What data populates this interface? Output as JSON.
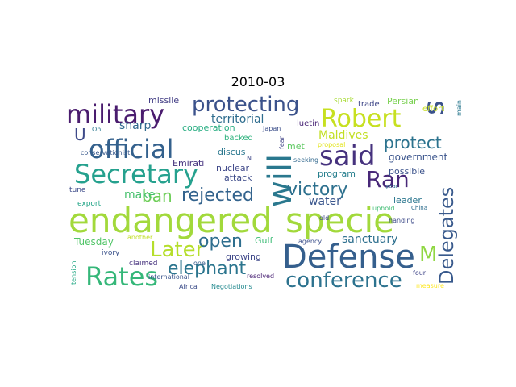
{
  "figure": {
    "title": "2010-03"
  },
  "words": [
    {
      "text": "endangered",
      "color": "#a2d93b"
    },
    {
      "text": "specie",
      "color": "#a2d93b"
    },
    {
      "text": "Defense",
      "color": "#355f8d"
    },
    {
      "text": "Secretary",
      "color": "#25a18e"
    },
    {
      "text": "official",
      "color": "#34618d"
    },
    {
      "text": "military",
      "color": "#4a1c6e"
    },
    {
      "text": "protecting",
      "color": "#3b528b"
    },
    {
      "text": "Robert",
      "color": "#c7e020"
    },
    {
      "text": "s",
      "color": "#3b528b"
    },
    {
      "text": "said",
      "color": "#46327e"
    },
    {
      "text": "Ran",
      "color": "#482878"
    },
    {
      "text": "will",
      "color": "#2a788e"
    },
    {
      "text": "Rates",
      "color": "#35b779"
    },
    {
      "text": "Later",
      "color": "#b5de2b"
    },
    {
      "text": "conference",
      "color": "#2c728e"
    },
    {
      "text": "Delegates",
      "color": "#38598c"
    },
    {
      "text": "victory",
      "color": "#2d708e"
    },
    {
      "text": "rejected",
      "color": "#33638d"
    },
    {
      "text": "elephant",
      "color": "#2b758e"
    },
    {
      "text": "open",
      "color": "#2e6e8e"
    },
    {
      "text": "protect",
      "color": "#2c738e"
    },
    {
      "text": "ban",
      "color": "#6ece58"
    },
    {
      "text": "M",
      "color": "#90d743"
    },
    {
      "text": "U",
      "color": "#3e4a89"
    },
    {
      "text": "make",
      "color": "#48c16e"
    },
    {
      "text": "sharp",
      "color": "#30698e"
    },
    {
      "text": "territorial",
      "color": "#2e6d8e"
    },
    {
      "text": "Maldives",
      "color": "#c2df23"
    },
    {
      "text": "water",
      "color": "#39558c"
    },
    {
      "text": "sanctuary",
      "color": "#2d6f8e"
    },
    {
      "text": "Tuesday",
      "color": "#52c569"
    },
    {
      "text": "government",
      "color": "#3a548c"
    },
    {
      "text": "cooperation",
      "color": "#26ad81"
    },
    {
      "text": "discus",
      "color": "#2a778e"
    },
    {
      "text": "nuclear",
      "color": "#3f4889"
    },
    {
      "text": "attack",
      "color": "#3e4c8a"
    },
    {
      "text": "Gulf",
      "color": "#3bbb75"
    },
    {
      "text": "growing",
      "color": "#3f4889"
    },
    {
      "text": "missile",
      "color": "#433e85"
    },
    {
      "text": "Persian",
      "color": "#7ad151"
    },
    {
      "text": "trade",
      "color": "#3f4788"
    },
    {
      "text": "spark",
      "color": "#a8db34"
    },
    {
      "text": "luetin",
      "color": "#482475"
    },
    {
      "text": "effort",
      "color": "#c8e020"
    },
    {
      "text": "main",
      "color": "#2a788e"
    },
    {
      "text": "program",
      "color": "#277f8e"
    },
    {
      "text": "possible",
      "color": "#3b528b"
    },
    {
      "text": "leader",
      "color": "#2a768e"
    },
    {
      "text": "Emirati",
      "color": "#46337f"
    },
    {
      "text": "backed",
      "color": "#2db27d"
    },
    {
      "text": "met",
      "color": "#5ec962"
    },
    {
      "text": "fear",
      "color": "#414487"
    },
    {
      "text": "seeking",
      "color": "#31688e"
    },
    {
      "text": "proposal",
      "color": "#e2e418"
    },
    {
      "text": "Japan",
      "color": "#3c4f8a"
    },
    {
      "text": "Oh",
      "color": "#2a788e"
    },
    {
      "text": "conservationist",
      "color": "#38598c"
    },
    {
      "text": "tune",
      "color": "#3e4c8a"
    },
    {
      "text": "export",
      "color": "#20a486"
    },
    {
      "text": "ivory",
      "color": "#3b528b"
    },
    {
      "text": "claimed",
      "color": "#46327e"
    },
    {
      "text": "another",
      "color": "#c0df25"
    },
    {
      "text": "tension",
      "color": "#22a884"
    },
    {
      "text": "international",
      "color": "#3a548c"
    },
    {
      "text": "Africa",
      "color": "#3d4e8a"
    },
    {
      "text": "Negotiations",
      "color": "#23898e"
    },
    {
      "text": "resolved",
      "color": "#482173"
    },
    {
      "text": "one",
      "color": "#355f8d"
    },
    {
      "text": "agency",
      "color": "#3c508b"
    },
    {
      "text": "old",
      "color": "#3e4989"
    },
    {
      "text": "uphold",
      "color": "#3fbc73"
    },
    {
      "text": "handing",
      "color": "#3e4c8a"
    },
    {
      "text": "China",
      "color": "#2e6e8e"
    },
    {
      "text": "four",
      "color": "#404688"
    },
    {
      "text": "measure",
      "color": "#fde725"
    },
    {
      "text": "year",
      "color": "#2e6d8e"
    },
    {
      "text": "N",
      "color": "#3f4889"
    },
    {
      "text": "international",
      "color": "#3a548c"
    }
  ]
}
